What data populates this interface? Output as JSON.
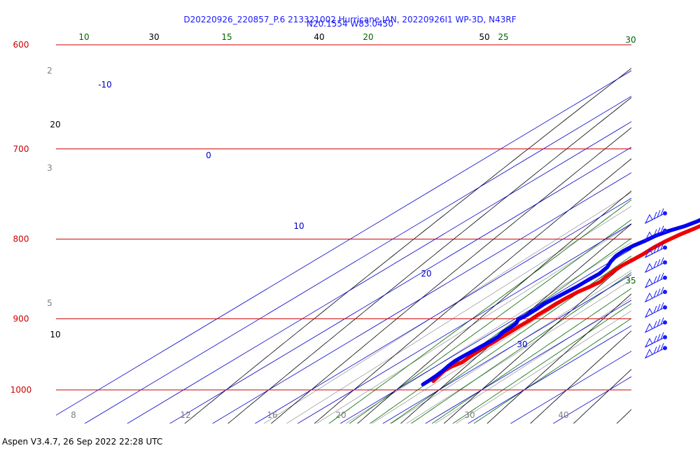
{
  "header": {
    "title_line1": "D20220926_220857_P.6 213321002 Hurricane IAN, 20220926I1 WP-3D, N43RF",
    "title_line2": "N20.1554 W83.0450"
  },
  "footer": {
    "text": "Aspen V3.4.7, 26 Sep 2022  22:28 UTC"
  },
  "colors": {
    "isobar": "#cc0000",
    "isotherm": "#0000cc",
    "dry_adiabat": "#000000",
    "moist_adiabat": "#006600",
    "mixing_ratio": "#808080",
    "temperature": "#ee0000",
    "dewpoint": "#0000ee",
    "wind_barb": "#1a1aff"
  },
  "chart_data": {
    "type": "skew-t",
    "pressure_levels": [
      600,
      700,
      800,
      900,
      1000
    ],
    "pressure_labels": [
      "600",
      "700",
      "800",
      "900",
      "1000"
    ],
    "isotherms": [
      {
        "t": -10,
        "label": "-10"
      },
      {
        "t": 0,
        "label": "0"
      },
      {
        "t": 10,
        "label": "10"
      },
      {
        "t": 20,
        "label": "20"
      },
      {
        "t": 30,
        "label": "30"
      }
    ],
    "dry_adiabat_labels": [
      {
        "theta": 10,
        "label": "10"
      },
      {
        "theta": 20,
        "label": "20"
      },
      {
        "theta": 30,
        "label": "30"
      },
      {
        "theta": 40,
        "label": "40"
      },
      {
        "theta": 50,
        "label": "50"
      }
    ],
    "moist_adiabat_labels": [
      {
        "theta": 10,
        "label": "10"
      },
      {
        "theta": 15,
        "label": "15"
      },
      {
        "theta": 20,
        "label": "20"
      },
      {
        "theta": 25,
        "label": "25"
      },
      {
        "theta": 30,
        "label": "30"
      },
      {
        "theta": 35,
        "label": "35"
      }
    ],
    "mixing_ratio_top_labels": [
      "2",
      "3",
      "5"
    ],
    "mixing_ratio_bottom_labels": [
      "8",
      "12",
      "16",
      "20",
      "30",
      "40"
    ],
    "temperature": {
      "p": [
        751,
        758,
        765,
        773,
        780,
        787,
        795,
        802,
        810,
        818,
        825,
        832,
        838,
        845,
        852,
        858,
        865,
        872,
        880,
        888,
        895,
        902,
        910,
        918,
        925,
        932,
        940,
        948,
        954,
        960,
        966,
        972,
        979,
        987
      ],
      "t": [
        16.5,
        17.0,
        17.5,
        17.8,
        17.6,
        16.8,
        15.6,
        14.9,
        14.6,
        14.7,
        14.5,
        14.2,
        14.4,
        14.8,
        15.5,
        15.0,
        14.2,
        13.9,
        13.7,
        13.8,
        13.8,
        14.0,
        13.9,
        14.0,
        14.0,
        14.1,
        14.0,
        14.1,
        14.3,
        14.6,
        13.8,
        13.7,
        14.4,
        15.2
      ]
    },
    "dewpoint": {
      "p": [
        751,
        757,
        764,
        771,
        779,
        785,
        790,
        796,
        802,
        808,
        814,
        820,
        827,
        834,
        842,
        850,
        858,
        865,
        872,
        880,
        888,
        895,
        901,
        906,
        912,
        918,
        924,
        930,
        937,
        944,
        951,
        958,
        965,
        972,
        979,
        986,
        992
      ],
      "t": [
        16.0,
        15.8,
        15.7,
        15.3,
        14.6,
        13.4,
        11.7,
        10.4,
        9.9,
        9.1,
        8.8,
        9.0,
        10.0,
        11.4,
        12.1,
        11.9,
        11.9,
        11.6,
        11.3,
        11.0,
        11.2,
        11.3,
        11.0,
        12.0,
        12.3,
        12.4,
        13.0,
        13.1,
        12.9,
        12.7,
        12.5,
        12.4,
        12.8,
        13.4,
        13.8,
        14.0,
        14.1
      ]
    },
    "wind_barbs": {
      "p": [
        770,
        790,
        810,
        828,
        847,
        865,
        885,
        905,
        925,
        940
      ],
      "label": "wind"
    }
  }
}
